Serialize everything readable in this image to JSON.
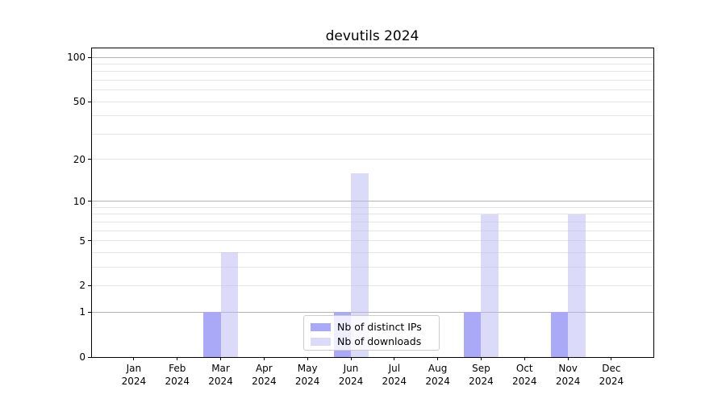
{
  "chart_data": {
    "type": "bar",
    "title": "devutils 2024",
    "categories": [
      "Jan",
      "Feb",
      "Mar",
      "Apr",
      "May",
      "Jun",
      "Jul",
      "Aug",
      "Sep",
      "Oct",
      "Nov",
      "Dec"
    ],
    "x_tick_year": "2024",
    "series": [
      {
        "name": "Nb of distinct IPs",
        "color": "#a9a9f7",
        "values": [
          0,
          0,
          1,
          0,
          0,
          1,
          0,
          0,
          1,
          0,
          1,
          0
        ]
      },
      {
        "name": "Nb of downloads",
        "color": "#dbdbf9",
        "values": [
          0,
          0,
          4,
          0,
          0,
          16,
          0,
          0,
          8,
          0,
          8,
          0
        ]
      }
    ],
    "yscale": "log1p",
    "ylim": [
      0,
      116
    ],
    "y_tick_values": [
      0,
      1,
      2,
      5,
      10,
      20,
      50,
      100
    ],
    "y_tick_labels": [
      "0",
      "1",
      "2",
      "5",
      "10",
      "20",
      "50",
      "100"
    ],
    "y_major_gridlines": [
      1,
      10,
      100
    ],
    "y_minor_gridlines": [
      2,
      3,
      4,
      5,
      6,
      7,
      8,
      9,
      20,
      30,
      40,
      50,
      60,
      70,
      80,
      90
    ],
    "grid": true,
    "legend_position": "lower center",
    "colors": {
      "major_grid": "#b3b3b3",
      "minor_grid": "#e6e6e6",
      "axis": "#000000",
      "background": "#ffffff"
    }
  }
}
